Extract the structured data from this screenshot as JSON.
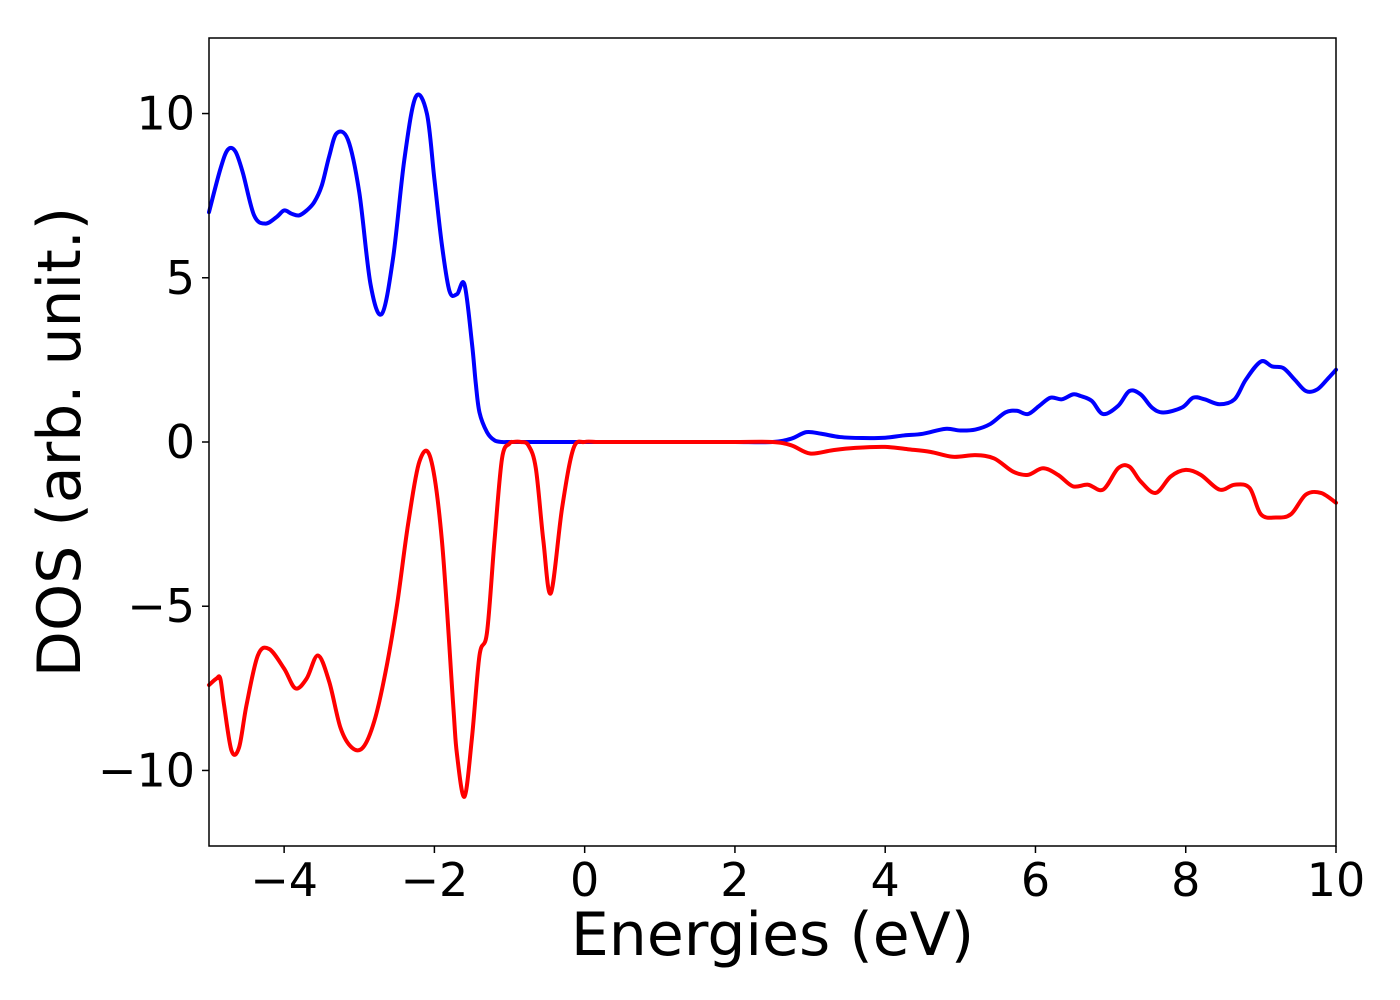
{
  "chart_data": {
    "type": "line",
    "xlabel": "Energies (eV)",
    "ylabel": "DOS (arb. unit.)",
    "xlim": [
      -5,
      10
    ],
    "ylim": [
      -12.3,
      12.3
    ],
    "xticks": [
      -4,
      -2,
      0,
      2,
      4,
      6,
      8,
      10
    ],
    "xtick_labels": [
      "−4",
      "−2",
      "0",
      "2",
      "4",
      "6",
      "8",
      "10"
    ],
    "yticks": [
      10,
      5,
      0,
      -5,
      -10
    ],
    "ytick_labels": [
      "10",
      "5",
      "0",
      "−5",
      "−10"
    ],
    "grid": false,
    "series": [
      {
        "color": "#0000ff",
        "x": [
          -5.0,
          -4.85,
          -4.75,
          -4.65,
          -4.55,
          -4.4,
          -4.25,
          -4.1,
          -4.0,
          -3.9,
          -3.8,
          -3.7,
          -3.6,
          -3.5,
          -3.4,
          -3.3,
          -3.15,
          -3.0,
          -2.85,
          -2.7,
          -2.55,
          -2.4,
          -2.25,
          -2.1,
          -2.0,
          -1.9,
          -1.8,
          -1.7,
          -1.6,
          -1.5,
          -1.45,
          -1.4,
          -1.3,
          -1.2,
          -1.1,
          -1.0,
          -0.9,
          -0.8,
          -0.7,
          -0.62,
          -0.55,
          -0.45,
          -0.35,
          -0.25,
          -0.15,
          -0.05,
          0.0,
          0.5,
          1.0,
          1.5,
          2.0,
          2.5,
          2.75,
          2.95,
          3.15,
          3.4,
          3.7,
          4.0,
          4.25,
          4.5,
          4.8,
          5.0,
          5.2,
          5.4,
          5.6,
          5.75,
          5.9,
          6.05,
          6.2,
          6.35,
          6.5,
          6.6,
          6.75,
          6.9,
          7.1,
          7.25,
          7.4,
          7.55,
          7.7,
          7.95,
          8.1,
          8.25,
          8.45,
          8.65,
          8.8,
          9.0,
          9.15,
          9.3,
          9.45,
          9.6,
          9.75,
          9.9,
          10.0
        ],
        "y": [
          7.0,
          8.3,
          8.9,
          8.85,
          8.2,
          6.9,
          6.65,
          6.85,
          7.05,
          6.95,
          6.9,
          7.05,
          7.3,
          7.8,
          8.7,
          9.4,
          9.2,
          7.6,
          4.8,
          3.9,
          5.6,
          8.6,
          10.5,
          10.0,
          8.0,
          6.0,
          4.6,
          4.5,
          4.8,
          3.0,
          1.8,
          0.9,
          0.3,
          0.05,
          0.0,
          0.0,
          0.0,
          0.0,
          0.0,
          0.0,
          0.0,
          0.0,
          0.0,
          0.0,
          0.0,
          0.0,
          0.0,
          0.0,
          0.0,
          0.0,
          0.0,
          0.0,
          0.1,
          0.3,
          0.25,
          0.15,
          0.12,
          0.13,
          0.2,
          0.25,
          0.4,
          0.35,
          0.38,
          0.55,
          0.9,
          0.95,
          0.85,
          1.1,
          1.35,
          1.3,
          1.45,
          1.4,
          1.25,
          0.85,
          1.1,
          1.55,
          1.45,
          1.05,
          0.9,
          1.05,
          1.35,
          1.3,
          1.15,
          1.3,
          1.9,
          2.45,
          2.3,
          2.25,
          1.9,
          1.55,
          1.6,
          1.95,
          2.2
        ]
      },
      {
        "color": "#ff0000",
        "x": [
          -5.0,
          -4.9,
          -4.85,
          -4.8,
          -4.7,
          -4.6,
          -4.5,
          -4.35,
          -4.2,
          -4.0,
          -3.85,
          -3.7,
          -3.55,
          -3.4,
          -3.25,
          -3.1,
          -2.95,
          -2.8,
          -2.65,
          -2.5,
          -2.35,
          -2.2,
          -2.05,
          -1.9,
          -1.75,
          -1.7,
          -1.6,
          -1.5,
          -1.4,
          -1.3,
          -1.2,
          -1.1,
          -1.0,
          -0.95,
          -0.85,
          -0.75,
          -0.65,
          -0.55,
          -0.45,
          -0.3,
          -0.15,
          0.0,
          0.15,
          0.3,
          0.45,
          0.55,
          0.62,
          0.7,
          0.8,
          0.9,
          1.05,
          1.2,
          1.5,
          2.0,
          2.5,
          2.75,
          3.0,
          3.3,
          3.6,
          4.0,
          4.3,
          4.6,
          4.9,
          5.2,
          5.45,
          5.7,
          5.9,
          6.1,
          6.3,
          6.5,
          6.7,
          6.9,
          7.1,
          7.25,
          7.4,
          7.6,
          7.8,
          8.0,
          8.2,
          8.45,
          8.65,
          8.85,
          9.0,
          9.2,
          9.4,
          9.6,
          9.8,
          10.0
        ],
        "y": [
          -7.4,
          -7.2,
          -7.2,
          -8.0,
          -9.4,
          -9.3,
          -8.0,
          -6.5,
          -6.3,
          -6.9,
          -7.5,
          -7.2,
          -6.5,
          -7.3,
          -8.7,
          -9.3,
          -9.3,
          -8.5,
          -7.0,
          -5.0,
          -2.5,
          -0.6,
          -0.5,
          -3.0,
          -8.0,
          -9.5,
          -10.8,
          -9.0,
          -6.5,
          -5.8,
          -3.0,
          -0.5,
          -0.05,
          0.0,
          0.0,
          -0.1,
          -0.8,
          -3.0,
          -4.6,
          -2.0,
          -0.2,
          0.0,
          0.0,
          0.0,
          0.0,
          0.0,
          0.0,
          0.0,
          0.0,
          0.0,
          0.0,
          0.0,
          0.0,
          0.0,
          0.0,
          -0.1,
          -0.35,
          -0.25,
          -0.18,
          -0.15,
          -0.22,
          -0.3,
          -0.45,
          -0.4,
          -0.5,
          -0.9,
          -1.0,
          -0.8,
          -1.0,
          -1.35,
          -1.3,
          -1.45,
          -0.8,
          -0.75,
          -1.2,
          -1.55,
          -1.05,
          -0.85,
          -1.0,
          -1.45,
          -1.3,
          -1.4,
          -2.2,
          -2.3,
          -2.2,
          -1.6,
          -1.55,
          -1.85
        ]
      }
    ]
  }
}
